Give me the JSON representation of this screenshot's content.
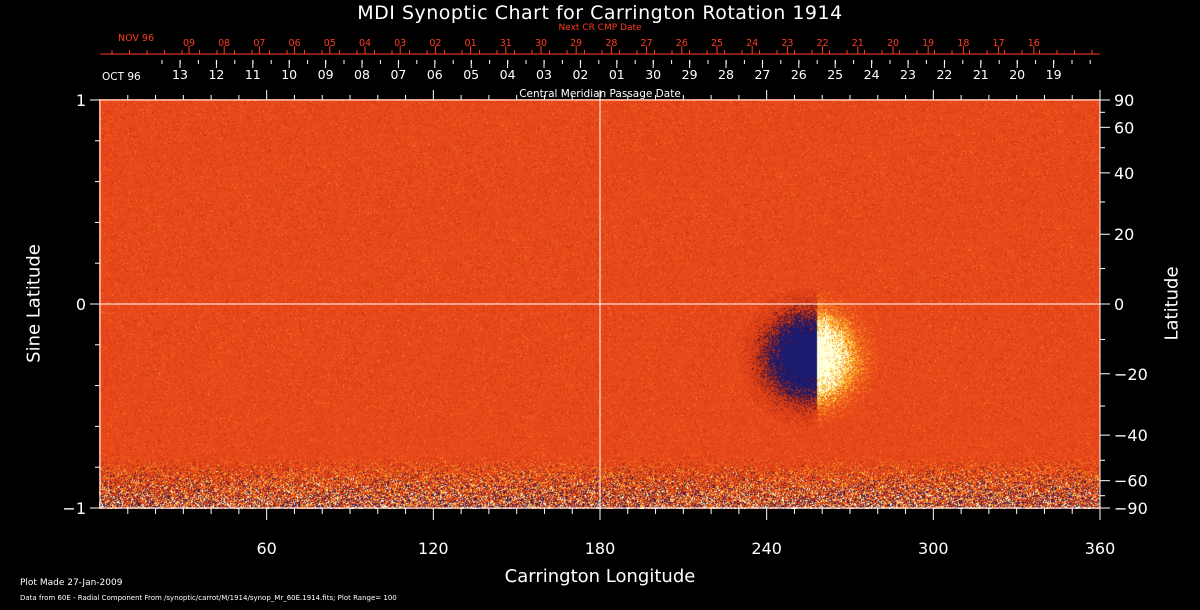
{
  "title": "MDI Synoptic Chart for Carrington Rotation 1914",
  "next_cr_label": "Next CR CMP Date",
  "nov_label": "NOV 96",
  "oct_label": "OCT 96",
  "cmp_label": "Central Meridian Passage Date",
  "left_axis_title": "Sine Latitude",
  "right_axis_title": "Latitude",
  "bottom_axis_title": "Carrington Longitude",
  "footer_line1": "Plot Made 27-Jan-2009",
  "footer_line2": "Data from 60E - Radial Component From /synoptic/carrot/M/1914/synop_Mr_60E.1914.fits; Plot Range= 100",
  "next_cr_dates": [
    "09",
    "08",
    "07",
    "06",
    "05",
    "04",
    "03",
    "02",
    "01",
    "31",
    "30",
    "29",
    "28",
    "27",
    "26",
    "25",
    "24",
    "23",
    "22",
    "21",
    "20",
    "19",
    "18",
    "17",
    "16"
  ],
  "cmp_dates": [
    "13",
    "12",
    "11",
    "10",
    "09",
    "08",
    "07",
    "06",
    "05",
    "04",
    "03",
    "02",
    "01",
    "30",
    "29",
    "28",
    "27",
    "26",
    "25",
    "24",
    "23",
    "22",
    "21",
    "20",
    "19"
  ],
  "x_ticks": [
    "60",
    "120",
    "180",
    "240",
    "300",
    "360"
  ],
  "left_ticks": [
    "1",
    "0",
    "−1"
  ],
  "right_ticks": [
    "90",
    "60",
    "40",
    "20",
    "0",
    "−20",
    "−40",
    "−60",
    "−90"
  ],
  "chart_data": {
    "type": "heatmap",
    "title": "MDI Synoptic Chart for Carrington Rotation 1914",
    "xlabel": "Carrington Longitude",
    "ylabel": "Sine Latitude",
    "y2label": "Latitude",
    "xlim": [
      0,
      360
    ],
    "ylim": [
      -1,
      1
    ],
    "x_ticks": [
      60,
      120,
      180,
      240,
      300,
      360
    ],
    "y_ticks": [
      -1,
      0,
      1
    ],
    "y2_ticks": [
      90,
      60,
      40,
      20,
      0,
      -20,
      -40,
      -60,
      -90
    ],
    "plot_range": 100,
    "colors": {
      "background": "#e8461a",
      "positive": "#ffffe0",
      "negative": "#1a1a6e",
      "text": "#ffffff",
      "cr_text": "#ff3b1f"
    },
    "active_region": {
      "longitude": 255,
      "latitude_deg": -15,
      "bipolar": true
    }
  }
}
